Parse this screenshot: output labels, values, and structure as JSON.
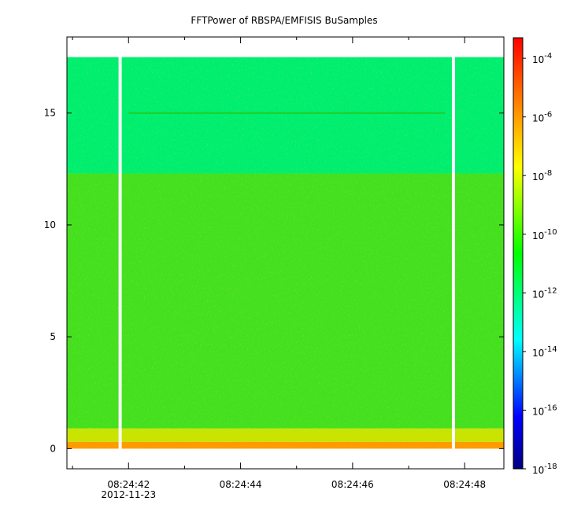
{
  "chart_data": {
    "type": "heatmap",
    "title": "FFTPower of RBSPA/EMFISIS  BuSamples",
    "xlabel": "",
    "ylabel": "",
    "x_ticks": [
      {
        "time": "08:24:42",
        "label": "08:24:42"
      },
      {
        "time": "08:24:44",
        "label": "08:24:44"
      },
      {
        "time": "08:24:46",
        "label": "08:24:46"
      },
      {
        "time": "08:24:48",
        "label": "08:24:48"
      }
    ],
    "x_date_label": "2012-11-23",
    "xlim": [
      "08:24:40.9",
      "08:24:48.7"
    ],
    "y_ticks": [
      0,
      5,
      10,
      15
    ],
    "ylim": [
      -0.9,
      18.4
    ],
    "data_y_range": [
      0,
      17.5
    ],
    "colorbar": {
      "scale": "log",
      "range_exponent": [
        -18,
        -3.3
      ],
      "ticks": [
        {
          "exponent": -4,
          "base": "10",
          "exp": "-4"
        },
        {
          "exponent": -6,
          "base": "10",
          "exp": "-6"
        },
        {
          "exponent": -8,
          "base": "10",
          "exp": "-8"
        },
        {
          "exponent": -10,
          "base": "10",
          "exp": "-10"
        },
        {
          "exponent": -12,
          "base": "10",
          "exp": "-12"
        },
        {
          "exponent": -14,
          "base": "10",
          "exp": "-14"
        },
        {
          "exponent": -16,
          "base": "10",
          "exp": "-16"
        },
        {
          "exponent": -18,
          "base": "10",
          "exp": "-18"
        }
      ],
      "colormap": [
        "#000080",
        "#0000ff",
        "#00ffff",
        "#00ff00",
        "#ffff00",
        "#ff8000",
        "#ff0000"
      ]
    },
    "gaps_x": [
      "08:24:41.85",
      "08:24:47.8"
    ],
    "bands": [
      {
        "y_from": 12.3,
        "y_to": 17.5,
        "log_power": -11.3,
        "color": "#00ee70"
      },
      {
        "y_from": 0.9,
        "y_to": 12.3,
        "log_power": -10.2,
        "color": "#44e020"
      },
      {
        "y_from": 0.3,
        "y_to": 0.9,
        "log_power": -9.0,
        "color": "#c8e400"
      },
      {
        "y_from": 0.0,
        "y_to": 0.3,
        "log_power": -7.5,
        "color": "#ff9a00"
      }
    ],
    "lines": [
      {
        "y": 15.0,
        "color": "#22cc22"
      }
    ]
  }
}
